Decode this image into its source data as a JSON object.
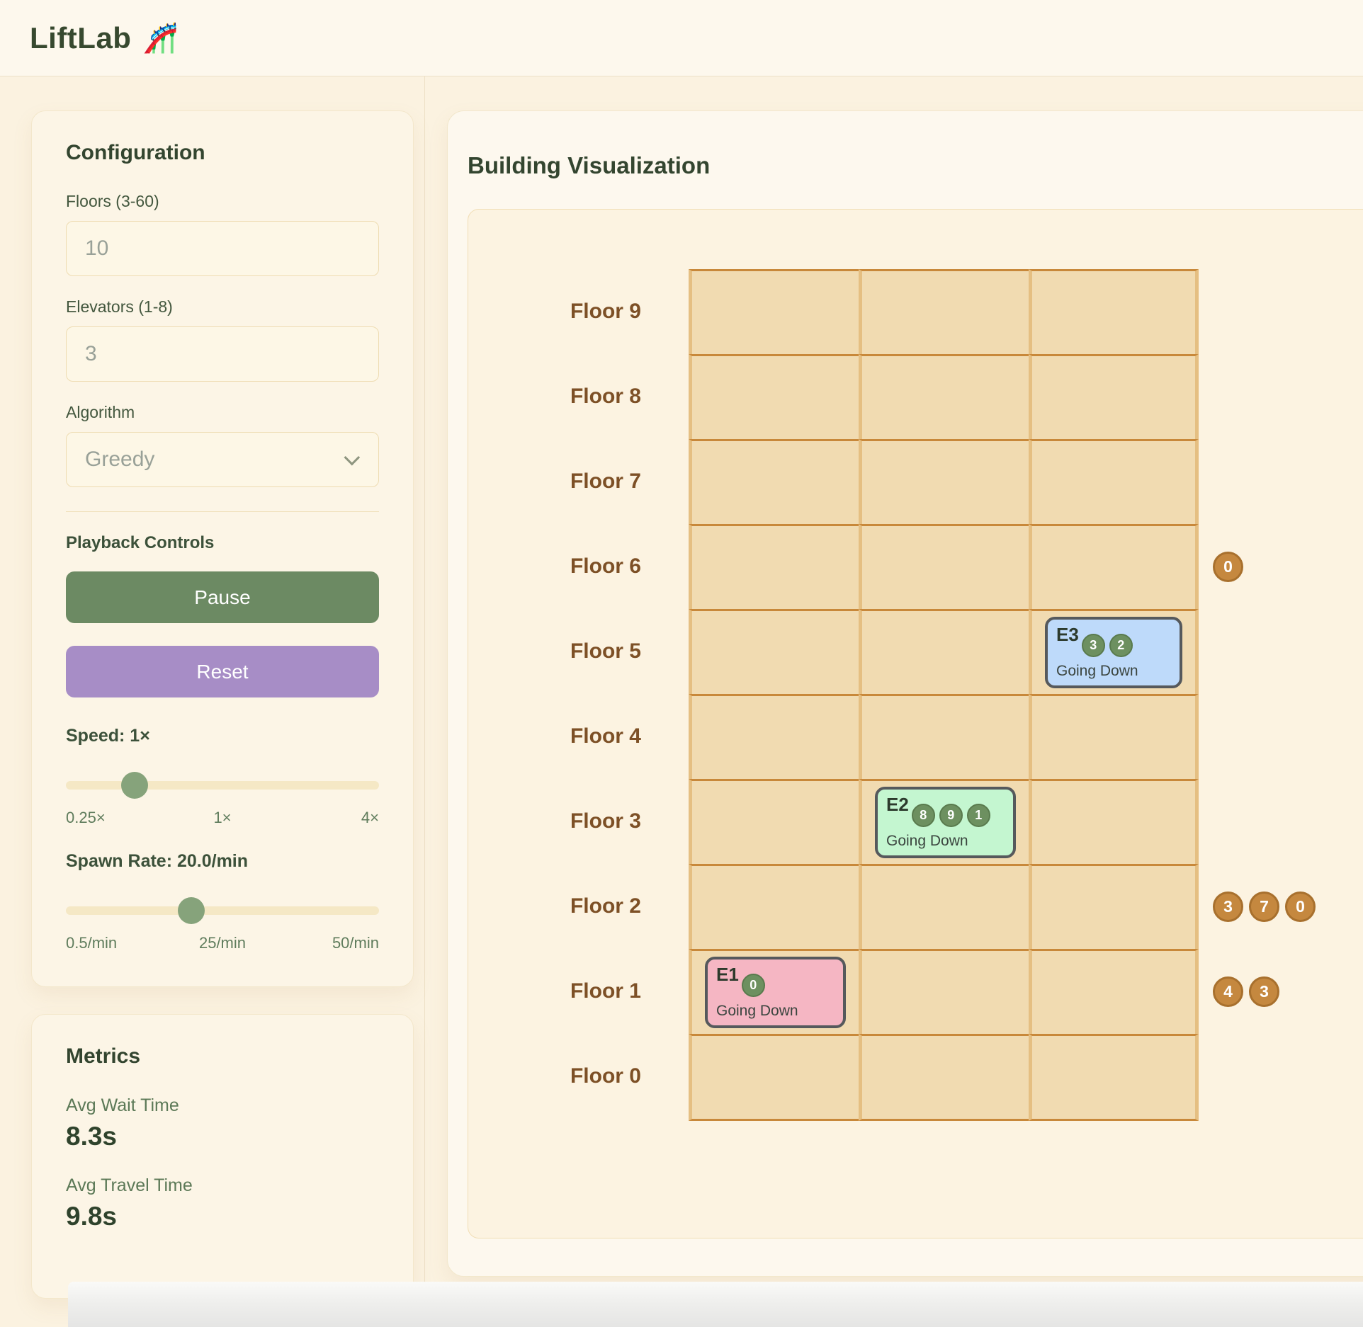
{
  "header": {
    "title": "LiftLab",
    "logo_glyph": "🎢"
  },
  "config": {
    "title": "Configuration",
    "floors": {
      "label": "Floors (3-60)",
      "value": "10"
    },
    "elevators": {
      "label": "Elevators (1-8)",
      "value": "3"
    },
    "algorithm": {
      "label": "Algorithm",
      "value": "Greedy"
    },
    "playback": {
      "label": "Playback Controls",
      "pause": "Pause",
      "reset": "Reset"
    },
    "speed": {
      "label": "Speed: 1×",
      "ticks": [
        "0.25×",
        "1×",
        "4×"
      ],
      "thumb_percent": 22
    },
    "spawn": {
      "label": "Spawn Rate: 20.0/min",
      "ticks": [
        "0.5/min",
        "25/min",
        "50/min"
      ],
      "thumb_percent": 40
    }
  },
  "metrics": {
    "title": "Metrics",
    "items": [
      {
        "label": "Avg Wait Time",
        "value": "8.3s"
      },
      {
        "label": "Avg Travel Time",
        "value": "9.8s"
      }
    ]
  },
  "building": {
    "title": "Building Visualization",
    "columns": 3,
    "floors": [
      {
        "number": 9,
        "label": "Floor 9",
        "waiting": []
      },
      {
        "number": 8,
        "label": "Floor 8",
        "waiting": []
      },
      {
        "number": 7,
        "label": "Floor 7",
        "waiting": []
      },
      {
        "number": 6,
        "label": "Floor 6",
        "waiting": [
          "0"
        ]
      },
      {
        "number": 5,
        "label": "Floor 5",
        "waiting": []
      },
      {
        "number": 4,
        "label": "Floor 4",
        "waiting": []
      },
      {
        "number": 3,
        "label": "Floor 3",
        "waiting": []
      },
      {
        "number": 2,
        "label": "Floor 2",
        "waiting": [
          "3",
          "7",
          "0"
        ]
      },
      {
        "number": 1,
        "label": "Floor 1",
        "waiting": [
          "4",
          "3"
        ]
      },
      {
        "number": 0,
        "label": "Floor 0",
        "waiting": []
      }
    ],
    "elevator_cars": [
      {
        "id": "E1",
        "floor": 1,
        "column": 0,
        "color": "#f5b6c3",
        "passengers": [
          "0"
        ],
        "status": "Going Down"
      },
      {
        "id": "E2",
        "floor": 3,
        "column": 1,
        "color": "#c4f6d0",
        "passengers": [
          "8",
          "9",
          "1"
        ],
        "status": "Going Down"
      },
      {
        "id": "E3",
        "floor": 5,
        "column": 2,
        "color": "#bedafa",
        "passengers": [
          "3",
          "2"
        ],
        "status": "Going Down"
      }
    ]
  },
  "colors": {
    "pause_button": "#6c8a63",
    "reset_button": "#a78dc6",
    "waiting_badge": "#c5883f",
    "passenger_badge": "#6d9060",
    "elevator_e1": "#f5b6c3",
    "elevator_e2": "#c4f6d0",
    "elevator_e3": "#bedafa"
  }
}
